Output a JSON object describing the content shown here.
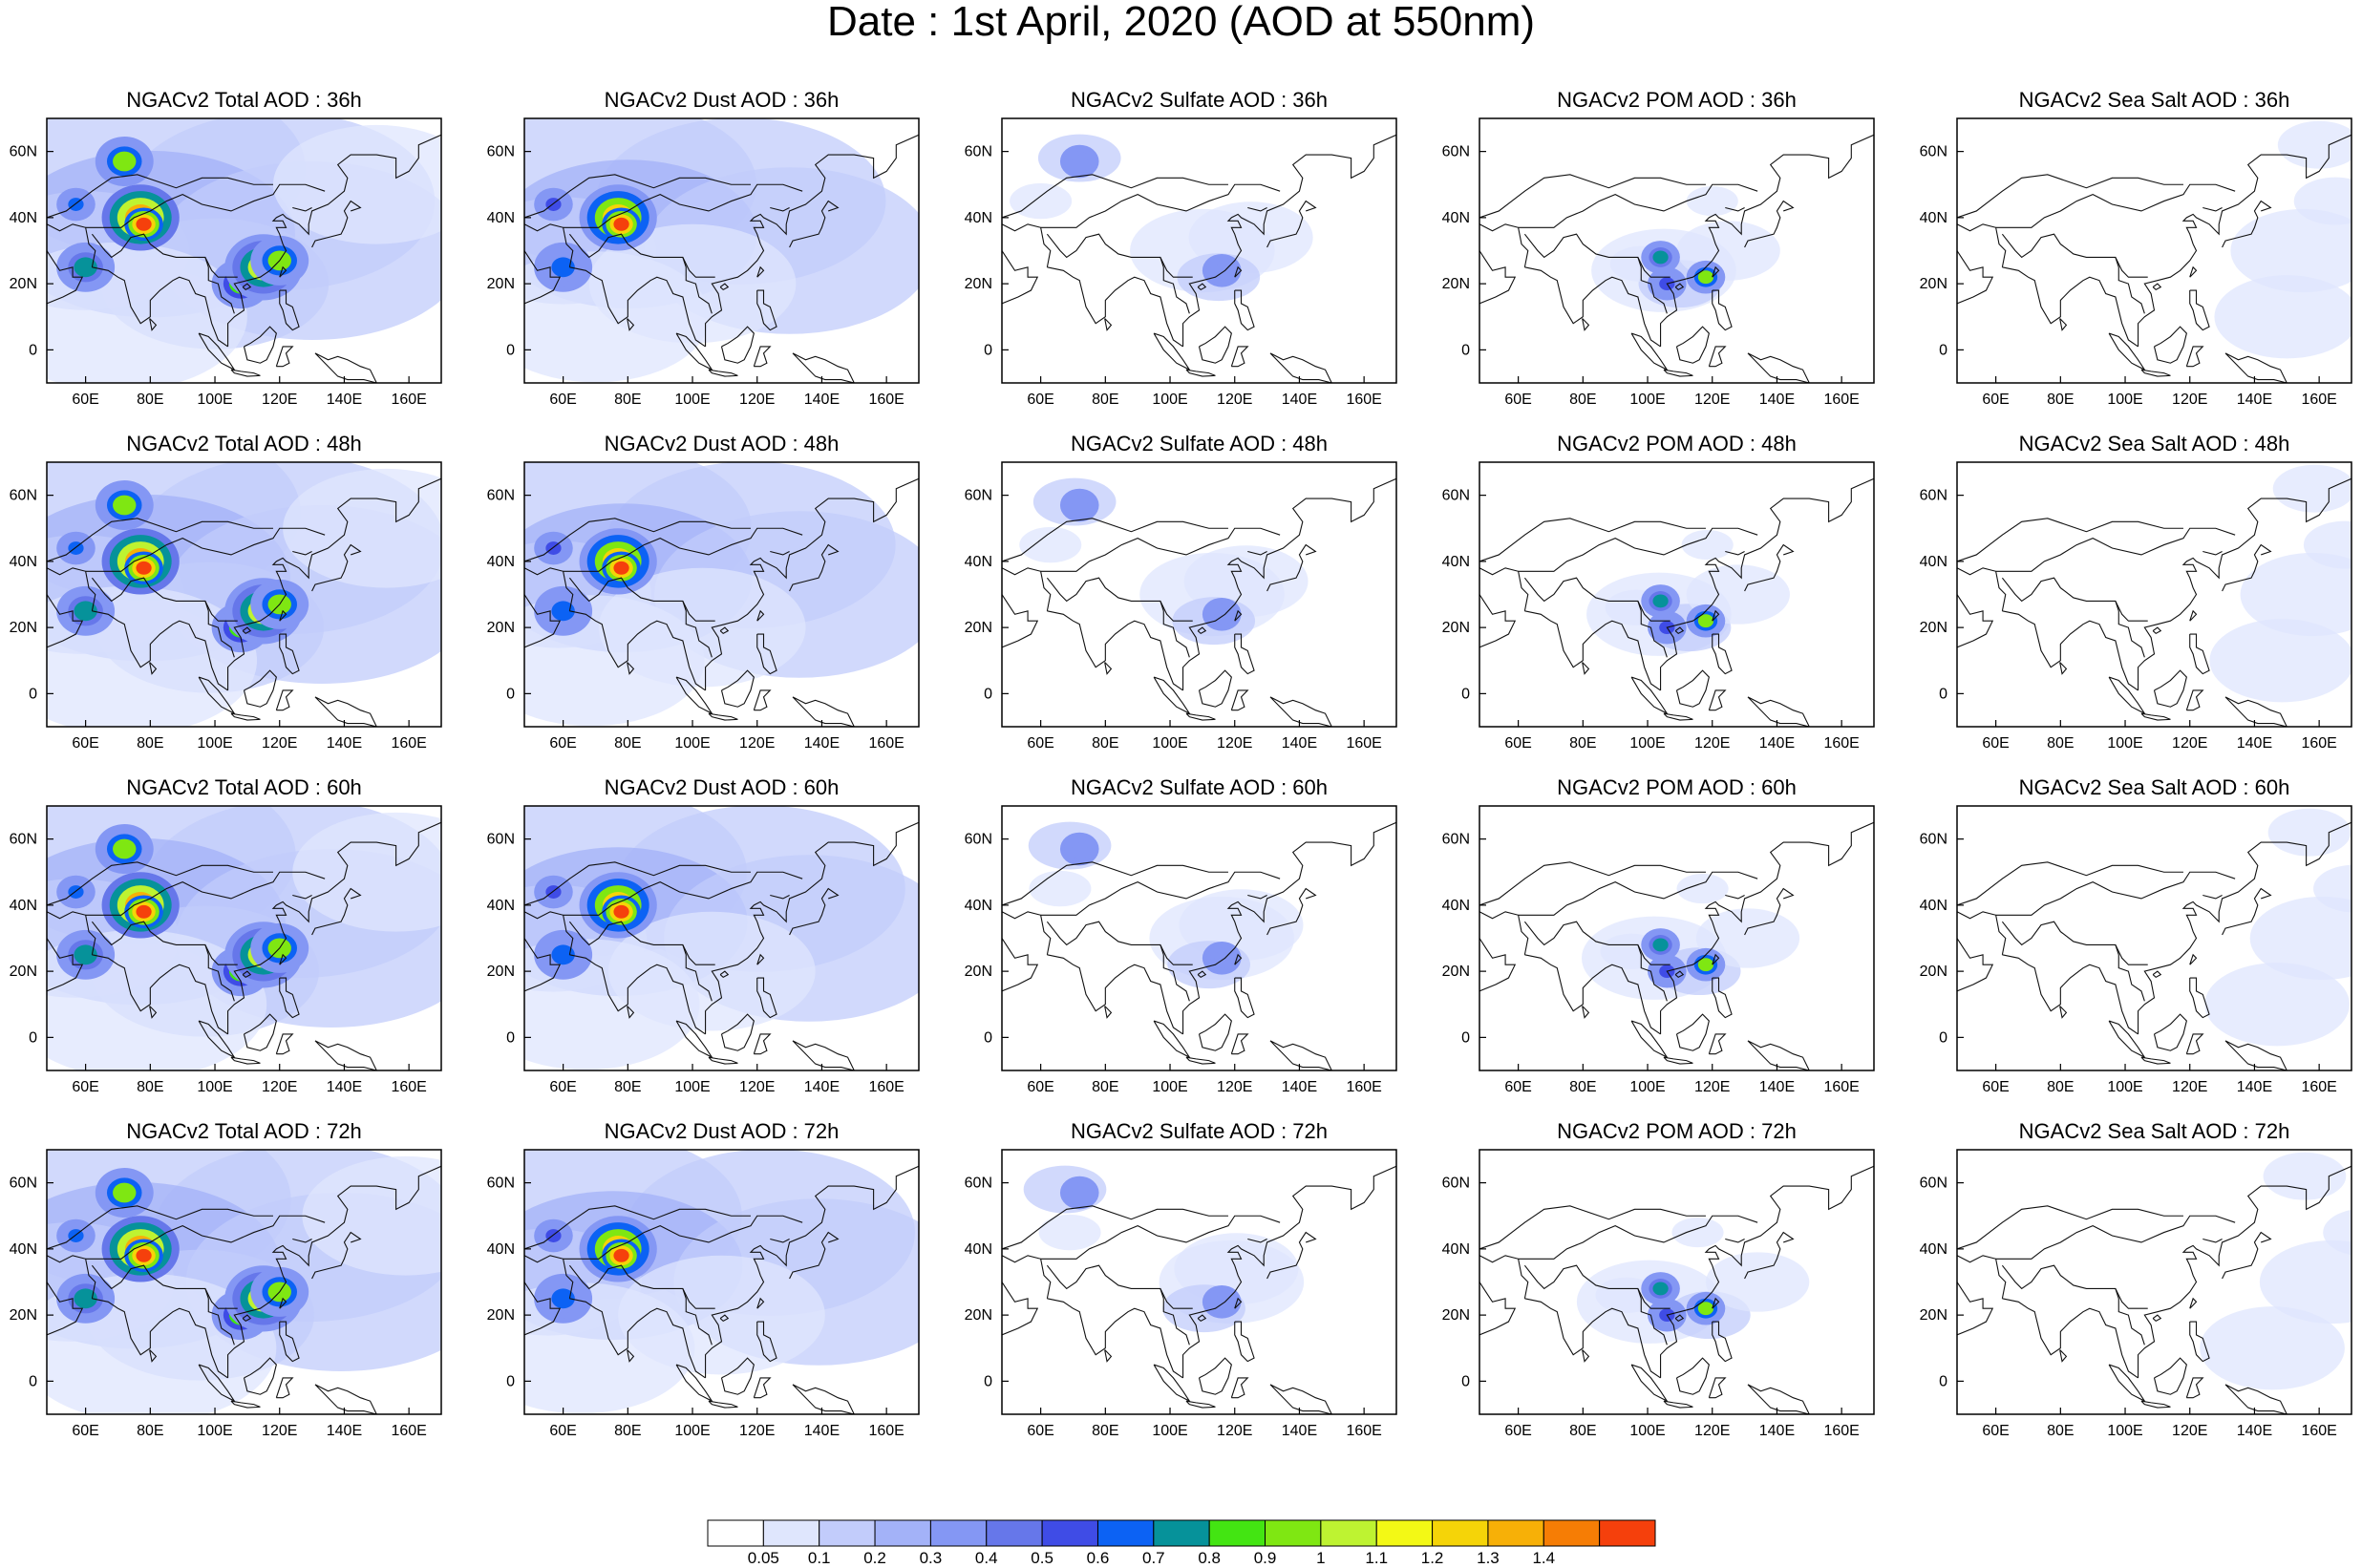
{
  "title": "Date : 1st April, 2020 (AOD at 550nm)",
  "colors": {
    "levels": [
      "#ffffff",
      "#dfe6fd",
      "#c2ccfb",
      "#a3b2f8",
      "#8497f4",
      "#6677ea",
      "#3f4ce6",
      "#0c62f4",
      "#06929a",
      "#43e512",
      "#7fe712",
      "#bef331",
      "#f3f915",
      "#f5d408",
      "#f7b007",
      "#f67d05",
      "#f5400c"
    ]
  },
  "colorbar": {
    "labels": [
      "0.05",
      "0.1",
      "0.2",
      "0.3",
      "0.4",
      "0.5",
      "0.6",
      "0.7",
      "0.8",
      "0.9",
      "1",
      "1.1",
      "1.2",
      "1.3",
      "1.4"
    ]
  },
  "axes": {
    "x_ticks": [
      "60E",
      "80E",
      "100E",
      "120E",
      "140E",
      "160E"
    ],
    "y_ticks": [
      "60N",
      "40N",
      "20N",
      "0"
    ]
  },
  "panels": [
    [
      "NGACv2 Total AOD : 36h",
      "NGACv2 Dust AOD : 36h",
      "NGACv2 Sulfate AOD : 36h",
      "NGACv2 POM AOD : 36h",
      "NGACv2 Sea Salt AOD : 36h"
    ],
    [
      "NGACv2 Total AOD : 48h",
      "NGACv2 Dust AOD : 48h",
      "NGACv2 Sulfate AOD : 48h",
      "NGACv2 POM AOD : 48h",
      "NGACv2 Sea Salt AOD : 48h"
    ],
    [
      "NGACv2 Total AOD : 60h",
      "NGACv2 Dust AOD : 60h",
      "NGACv2 Sulfate AOD : 60h",
      "NGACv2 POM AOD : 60h",
      "NGACv2 Sea Salt AOD : 60h"
    ],
    [
      "NGACv2 Total AOD : 72h",
      "NGACv2 Dust AOD : 72h",
      "NGACv2 Sulfate AOD : 72h",
      "NGACv2 POM AOD : 72h",
      "NGACv2 Sea Salt  AOD : 72h"
    ]
  ]
}
